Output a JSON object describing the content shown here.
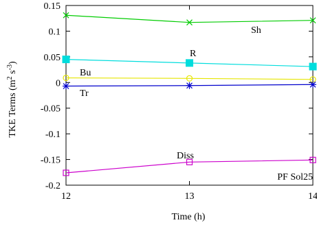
{
  "chart_data": {
    "type": "line",
    "xlabel": "Time (h)",
    "ylabel_parts": [
      "TKE Terms (m",
      "2",
      " s",
      "-3",
      ")"
    ],
    "xlim": [
      12,
      14
    ],
    "ylim": [
      -0.2,
      0.15
    ],
    "xticks": [
      "12",
      "13",
      "14"
    ],
    "yticks": [
      "0.15",
      "0.1",
      "0.05",
      "0",
      "-0.05",
      "-0.1",
      "-0.15",
      "-0.2"
    ],
    "grid": false,
    "legend": "none (series labelled inline)",
    "x": [
      12,
      13,
      14
    ],
    "series": [
      {
        "name": "Sh",
        "values": [
          0.131,
          0.117,
          0.121
        ],
        "color": "#00cc00",
        "marker": "x"
      },
      {
        "name": "R",
        "values": [
          0.045,
          0.038,
          0.031
        ],
        "color": "#00dddd",
        "marker": "filled-square"
      },
      {
        "name": "Bu",
        "values": [
          0.009,
          0.008,
          0.006
        ],
        "color": "#e6e600",
        "marker": "open-circle"
      },
      {
        "name": "Tr",
        "values": [
          -0.007,
          -0.006,
          -0.004
        ],
        "color": "#0000cc",
        "marker": "star"
      },
      {
        "name": "Diss",
        "values": [
          -0.176,
          -0.155,
          -0.151
        ],
        "color": "#cc00cc",
        "marker": "open-square"
      }
    ],
    "annotation": "PF Sol25"
  }
}
